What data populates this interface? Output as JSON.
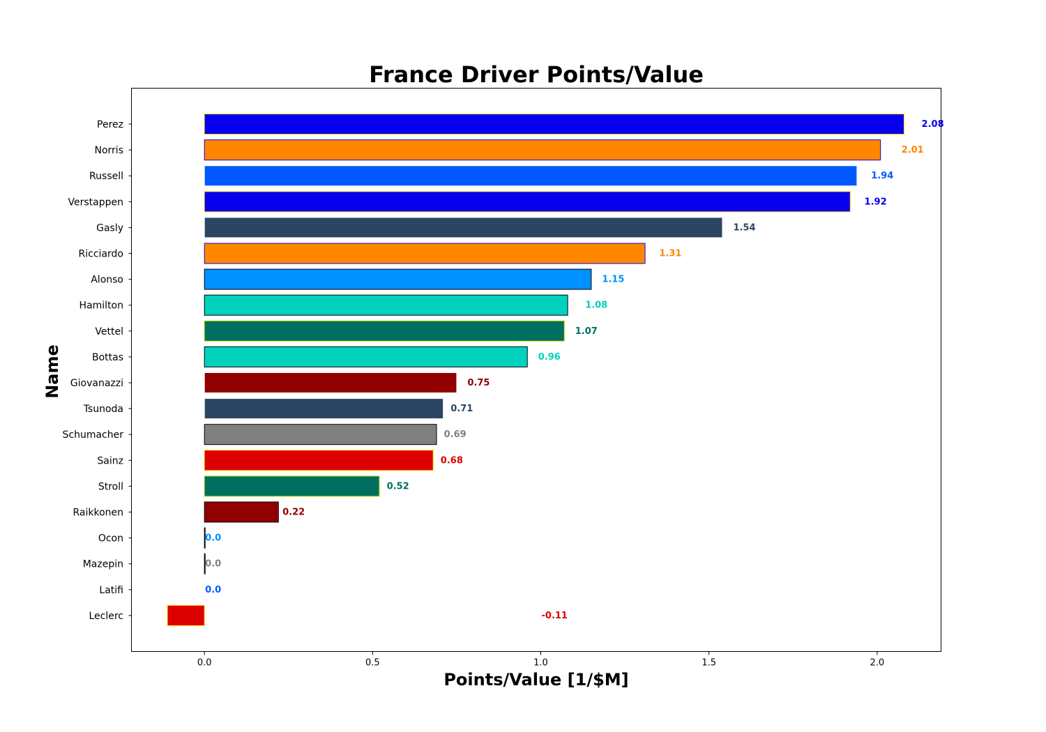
{
  "chart_data": {
    "type": "bar",
    "orientation": "horizontal",
    "title": "France Driver Points/Value",
    "xlabel": "Points/Value [1/$M]",
    "ylabel": "Name",
    "xlim": [
      -0.217,
      2.19
    ],
    "xticks": [
      "0.0",
      "0.5",
      "1.0",
      "1.5",
      "2.0"
    ],
    "xtick_values": [
      0.0,
      0.5,
      1.0,
      1.5,
      2.0
    ],
    "grid": false,
    "legend": "none",
    "bars": [
      {
        "name": "Perez",
        "value": 2.08,
        "label": "2.08",
        "color": "#0600EF",
        "edge": "#FFD700"
      },
      {
        "name": "Norris",
        "value": 2.01,
        "label": "2.01",
        "color": "#FF8700",
        "edge": "#1E00D2"
      },
      {
        "name": "Russell",
        "value": 1.94,
        "label": "1.94",
        "color": "#005AFF",
        "edge": "#FFFFFF"
      },
      {
        "name": "Verstappen",
        "value": 1.92,
        "label": "1.92",
        "color": "#0600EF",
        "edge": "#FFD700"
      },
      {
        "name": "Gasly",
        "value": 1.54,
        "label": "1.54",
        "color": "#2B4562",
        "edge": "#FFFFFF"
      },
      {
        "name": "Ricciardo",
        "value": 1.31,
        "label": "1.31",
        "color": "#FF8700",
        "edge": "#1E00D2"
      },
      {
        "name": "Alonso",
        "value": 1.15,
        "label": "1.15",
        "color": "#0090FF",
        "edge": "#000000"
      },
      {
        "name": "Hamilton",
        "value": 1.08,
        "label": "1.08",
        "color": "#00D2BE",
        "edge": "#000000"
      },
      {
        "name": "Vettel",
        "value": 1.07,
        "label": "1.07",
        "color": "#006F62",
        "edge": "#C5E000"
      },
      {
        "name": "Bottas",
        "value": 0.96,
        "label": "0.96",
        "color": "#00D2BE",
        "edge": "#000000"
      },
      {
        "name": "Giovanazzi",
        "value": 0.75,
        "label": "0.75",
        "color": "#900000",
        "edge": "#FFFFFF"
      },
      {
        "name": "Tsunoda",
        "value": 0.71,
        "label": "0.71",
        "color": "#2B4562",
        "edge": "#FFFFFF"
      },
      {
        "name": "Schumacher",
        "value": 0.69,
        "label": "0.69",
        "color": "#808080",
        "edge": "#000000"
      },
      {
        "name": "Sainz",
        "value": 0.68,
        "label": "0.68",
        "color": "#DC0000",
        "edge": "#FFD700"
      },
      {
        "name": "Stroll",
        "value": 0.52,
        "label": "0.52",
        "color": "#006F62",
        "edge": "#C5E000"
      },
      {
        "name": "Raikkonen",
        "value": 0.22,
        "label": "0.22",
        "color": "#900000",
        "edge": "#000000"
      },
      {
        "name": "Ocon",
        "value": 0.0,
        "label": "0.0",
        "color": "#0090FF",
        "edge": "#000000"
      },
      {
        "name": "Mazepin",
        "value": 0.0,
        "label": "0.0",
        "color": "#808080",
        "edge": "#000000"
      },
      {
        "name": "Latifi",
        "value": 0.0,
        "label": "0.0",
        "color": "#005AFF",
        "edge": "#FFFFFF"
      },
      {
        "name": "Leclerc",
        "value": -0.11,
        "label": "-0.11",
        "color": "#DC0000",
        "edge": "#FFD700"
      }
    ],
    "value_label_positions": [
      2.13,
      2.07,
      1.98,
      1.96,
      1.57,
      1.35,
      1.18,
      1.13,
      1.1,
      0.99,
      0.78,
      0.73,
      0.71,
      0.7,
      0.54,
      0.23,
      0.0,
      0.0,
      0.0,
      1.0
    ]
  }
}
